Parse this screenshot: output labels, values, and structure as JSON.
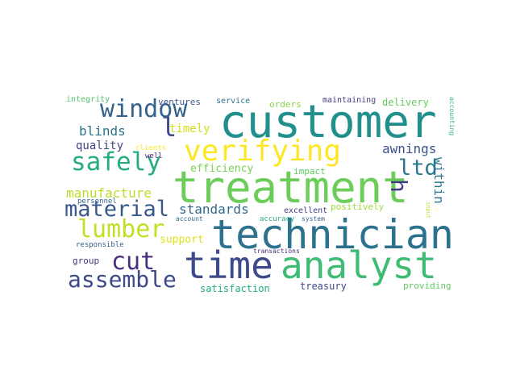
{
  "words": [
    {
      "text": "customer",
      "color": "#21908d"
    },
    {
      "text": "treatment",
      "color": "#6ccd5a"
    },
    {
      "text": "technician",
      "color": "#2c728e"
    },
    {
      "text": "time",
      "color": "#3e4a89"
    },
    {
      "text": "analyst",
      "color": "#3fbc73"
    },
    {
      "text": "verifying",
      "color": "#fde725"
    },
    {
      "text": "window",
      "color": "#33628d"
    },
    {
      "text": "safely",
      "color": "#25ac82"
    },
    {
      "text": "material",
      "color": "#38598c"
    },
    {
      "text": "lumber",
      "color": "#c2df23"
    },
    {
      "text": "cut",
      "color": "#472f7d"
    },
    {
      "text": "assemble",
      "color": "#3e4a89"
    },
    {
      "text": "ltd",
      "color": "#2a788e"
    },
    {
      "text": "h",
      "color": "#443a83"
    },
    {
      "text": "l",
      "color": "#3e4a89"
    },
    {
      "text": "manufacture",
      "color": "#b8de29"
    },
    {
      "text": "standards",
      "color": "#31688e"
    },
    {
      "text": "awnings",
      "color": "#3b528b"
    },
    {
      "text": "within",
      "color": "#2a788e"
    },
    {
      "text": "blinds",
      "color": "#2c728e"
    },
    {
      "text": "quality",
      "color": "#414487"
    },
    {
      "text": "timely",
      "color": "#d0e11c"
    },
    {
      "text": "efficiency",
      "color": "#7ad151"
    },
    {
      "text": "support",
      "color": "#dde318"
    },
    {
      "text": "positively",
      "color": "#9fda3a"
    },
    {
      "text": "excellent",
      "color": "#424086"
    },
    {
      "text": "impact",
      "color": "#5ec962"
    },
    {
      "text": "ventures",
      "color": "#38598c"
    },
    {
      "text": "service",
      "color": "#2c728e"
    },
    {
      "text": "orders",
      "color": "#86d549"
    },
    {
      "text": "delivery",
      "color": "#65cb5e"
    },
    {
      "text": "maintaining",
      "color": "#443983"
    },
    {
      "text": "integrity",
      "color": "#52c569"
    },
    {
      "text": "accounting",
      "color": "#35b779"
    },
    {
      "text": "clients",
      "color": "#fde725"
    },
    {
      "text": "personnel",
      "color": "#355f8d"
    },
    {
      "text": "well",
      "color": "#481f70"
    },
    {
      "text": "account",
      "color": "#2f6c8e"
    },
    {
      "text": "accuracy",
      "color": "#29af7f"
    },
    {
      "text": "system",
      "color": "#34618d"
    },
    {
      "text": "input",
      "color": "#b5de2b"
    },
    {
      "text": "responsible",
      "color": "#355f8d"
    },
    {
      "text": "transactions",
      "color": "#472d7b"
    },
    {
      "text": "group",
      "color": "#453581"
    },
    {
      "text": "satisfaction",
      "color": "#25ab82"
    },
    {
      "text": "treasury",
      "color": "#3e4a89"
    },
    {
      "text": "providing",
      "color": "#5ec962"
    }
  ]
}
